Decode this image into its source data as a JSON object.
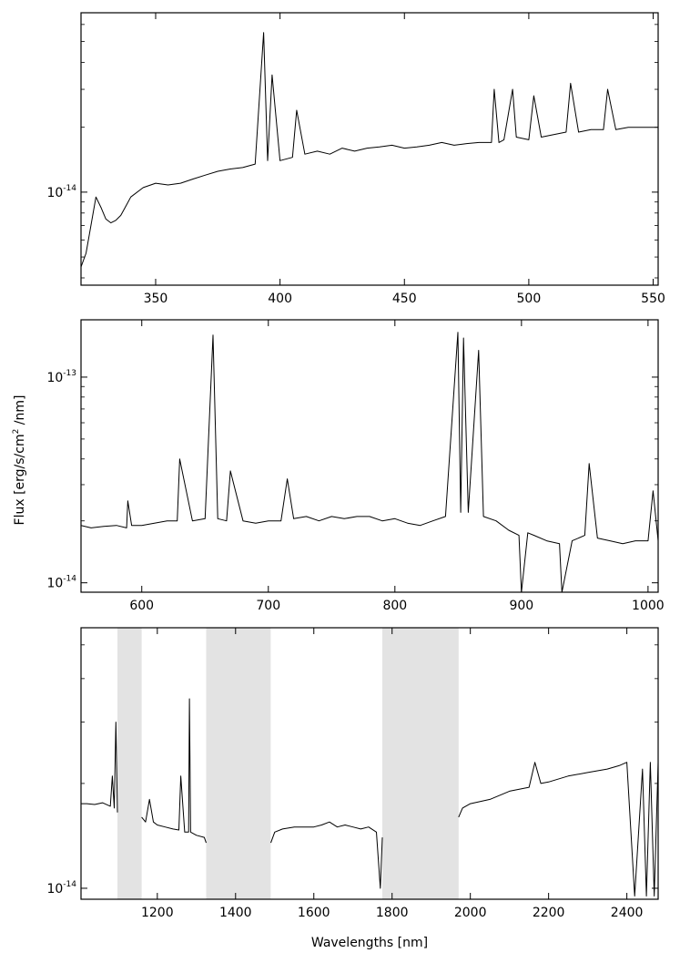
{
  "figure": {
    "ylabel_main": "Flux [erg/s/cm",
    "ylabel_sup": "2",
    "ylabel_tail": " /nm]",
    "xlabel": "Wavelengths [nm]"
  },
  "chart_data": [
    {
      "type": "line",
      "panel": "top",
      "title": "",
      "xlabel": "",
      "ylabel": "",
      "yscale": "log",
      "xlim": [
        320,
        552
      ],
      "ylim": [
        3.7e-15,
        6.8e-14
      ],
      "grid": false,
      "legend": "none",
      "x_ticks": [
        350,
        400,
        450,
        500,
        550
      ],
      "x_tick_labels": [
        "350",
        "400",
        "450",
        "500",
        "550"
      ],
      "y_ticks": [
        1e-14
      ],
      "y_tick_labels": [
        {
          "base": "10",
          "exp": "-14"
        }
      ],
      "series": [
        {
          "color": "#000000",
          "x": [
            320,
            322,
            324,
            326,
            328,
            330,
            332,
            334,
            336,
            338,
            340,
            345,
            350,
            355,
            360,
            365,
            370,
            375,
            380,
            385,
            390,
            393.4,
            395,
            396.8,
            400,
            405,
            406.7,
            410,
            415,
            420,
            425,
            430,
            435,
            440,
            445,
            450,
            455,
            460,
            465,
            470,
            475,
            480,
            485,
            486.1,
            488,
            490,
            493.5,
            495,
            500,
            502,
            505,
            510,
            515,
            516.8,
            520,
            525,
            530,
            531.7,
            535,
            540,
            545,
            550,
            552
          ],
          "y": [
            4.5e-15,
            5.2e-15,
            7e-15,
            9.5e-15,
            8.5e-15,
            7.5e-15,
            7.2e-15,
            7.4e-15,
            7.8e-15,
            8.6e-15,
            9.5e-15,
            1.05e-14,
            1.1e-14,
            1.08e-14,
            1.1e-14,
            1.15e-14,
            1.2e-14,
            1.25e-14,
            1.28e-14,
            1.3e-14,
            1.35e-14,
            5.5e-14,
            1.4e-14,
            3.5e-14,
            1.4e-14,
            1.45e-14,
            2.4e-14,
            1.5e-14,
            1.55e-14,
            1.5e-14,
            1.6e-14,
            1.55e-14,
            1.6e-14,
            1.62e-14,
            1.65e-14,
            1.6e-14,
            1.62e-14,
            1.65e-14,
            1.7e-14,
            1.65e-14,
            1.68e-14,
            1.7e-14,
            1.7e-14,
            3e-14,
            1.7e-14,
            1.75e-14,
            3e-14,
            1.8e-14,
            1.75e-14,
            2.8e-14,
            1.8e-14,
            1.85e-14,
            1.9e-14,
            3.2e-14,
            1.9e-14,
            1.95e-14,
            1.95e-14,
            3e-14,
            1.95e-14,
            2e-14,
            2e-14,
            2e-14,
            2e-14
          ]
        }
      ]
    },
    {
      "type": "line",
      "panel": "middle",
      "title": "",
      "xlabel": "",
      "ylabel": "Flux [erg/s/cm2 /nm]",
      "yscale": "log",
      "xlim": [
        552,
        1008
      ],
      "ylim": [
        9e-15,
        1.9e-13
      ],
      "grid": false,
      "legend": "none",
      "x_ticks": [
        600,
        700,
        800,
        900,
        1000
      ],
      "x_tick_labels": [
        "600",
        "700",
        "800",
        "900",
        "1000"
      ],
      "y_ticks": [
        1e-14,
        1e-13
      ],
      "y_tick_labels": [
        {
          "base": "10",
          "exp": "-14"
        },
        {
          "base": "10",
          "exp": "-13"
        }
      ],
      "series": [
        {
          "color": "#000000",
          "x": [
            552,
            560,
            570,
            580,
            588,
            589,
            592,
            600,
            610,
            620,
            628,
            630,
            640,
            650,
            656.3,
            660,
            667,
            670,
            680,
            690,
            700,
            710,
            715,
            720,
            730,
            740,
            750,
            760,
            770,
            780,
            790,
            800,
            810,
            820,
            830,
            840,
            849.8,
            852,
            854.2,
            858,
            866.2,
            870,
            880,
            890,
            898,
            900,
            905,
            910,
            920,
            930,
            932,
            940,
            950,
            953.5,
            960,
            970,
            980,
            990,
            1000,
            1004,
            1008
          ],
          "y": [
            1.9e-14,
            1.85e-14,
            1.88e-14,
            1.9e-14,
            1.85e-14,
            2.5e-14,
            1.9e-14,
            1.9e-14,
            1.95e-14,
            2e-14,
            2e-14,
            4e-14,
            2e-14,
            2.05e-14,
            1.6e-13,
            2.05e-14,
            2e-14,
            3.5e-14,
            2e-14,
            1.95e-14,
            2e-14,
            2e-14,
            3.2e-14,
            2.05e-14,
            2.1e-14,
            2e-14,
            2.1e-14,
            2.05e-14,
            2.1e-14,
            2.1e-14,
            2e-14,
            2.05e-14,
            1.95e-14,
            1.9e-14,
            2e-14,
            2.1e-14,
            1.65e-13,
            2.2e-14,
            1.55e-13,
            2.2e-14,
            1.35e-13,
            2.1e-14,
            2e-14,
            1.8e-14,
            1.7e-14,
            9e-15,
            1.75e-14,
            1.7e-14,
            1.6e-14,
            1.55e-14,
            9e-15,
            1.6e-14,
            1.7e-14,
            3.8e-14,
            1.65e-14,
            1.6e-14,
            1.55e-14,
            1.6e-14,
            1.6e-14,
            2.8e-14,
            1.6e-14
          ]
        }
      ]
    },
    {
      "type": "line",
      "panel": "bottom",
      "title": "",
      "xlabel": "Wavelengths [nm]",
      "ylabel": "",
      "yscale": "log",
      "xlim": [
        1005,
        2480
      ],
      "ylim": [
        9.3e-15,
        5.6e-14
      ],
      "grid": false,
      "legend": "none",
      "x_ticks": [
        1200,
        1400,
        1600,
        1800,
        2000,
        2200,
        2400
      ],
      "x_tick_labels": [
        "1200",
        "1400",
        "1600",
        "1800",
        "2000",
        "2200",
        "2400"
      ],
      "y_ticks": [
        1e-14
      ],
      "y_tick_labels": [
        {
          "base": "10",
          "exp": "-14"
        }
      ],
      "shaded_regions": [
        [
          1098,
          1160
        ],
        [
          1325,
          1490
        ],
        [
          1775,
          1970
        ]
      ],
      "series": [
        {
          "color": "#000000",
          "x": [
            1005,
            1020,
            1040,
            1060,
            1080,
            1085,
            1090,
            1094,
            1098
          ],
          "y": [
            1.75e-14,
            1.75e-14,
            1.74e-14,
            1.76e-14,
            1.72e-14,
            2.1e-14,
            1.7e-14,
            3e-14,
            1.65e-14
          ]
        },
        {
          "color": "#000000",
          "x": [
            1160,
            1170,
            1180,
            1190,
            1200,
            1220,
            1240,
            1255,
            1260,
            1270,
            1280,
            1282,
            1285,
            1300,
            1320,
            1325
          ],
          "y": [
            1.6e-14,
            1.55e-14,
            1.8e-14,
            1.55e-14,
            1.52e-14,
            1.5e-14,
            1.48e-14,
            1.47e-14,
            2.1e-14,
            1.45e-14,
            1.45e-14,
            3.5e-14,
            1.45e-14,
            1.42e-14,
            1.4e-14,
            1.35e-14
          ]
        },
        {
          "color": "#000000",
          "x": [
            1490,
            1500,
            1520,
            1550,
            1580,
            1600,
            1620,
            1640,
            1660,
            1680,
            1700,
            1720,
            1740,
            1760,
            1770,
            1775
          ],
          "y": [
            1.35e-14,
            1.45e-14,
            1.48e-14,
            1.5e-14,
            1.5e-14,
            1.5e-14,
            1.52e-14,
            1.55e-14,
            1.5e-14,
            1.52e-14,
            1.5e-14,
            1.48e-14,
            1.5e-14,
            1.45e-14,
            1e-14,
            1.4e-14
          ]
        },
        {
          "color": "#000000",
          "x": [
            1970,
            1980,
            2000,
            2050,
            2100,
            2150,
            2165,
            2180,
            2200,
            2250,
            2300,
            2350,
            2380,
            2400,
            2420,
            2440,
            2450,
            2460,
            2470,
            2480
          ],
          "y": [
            1.6e-14,
            1.7e-14,
            1.75e-14,
            1.8e-14,
            1.9e-14,
            1.95e-14,
            2.3e-14,
            2e-14,
            2.02e-14,
            2.1e-14,
            2.15e-14,
            2.2e-14,
            2.25e-14,
            2.3e-14,
            9.5e-15,
            2.2e-14,
            9.5e-15,
            2.3e-14,
            9.5e-15,
            2.3e-14
          ]
        }
      ]
    }
  ]
}
